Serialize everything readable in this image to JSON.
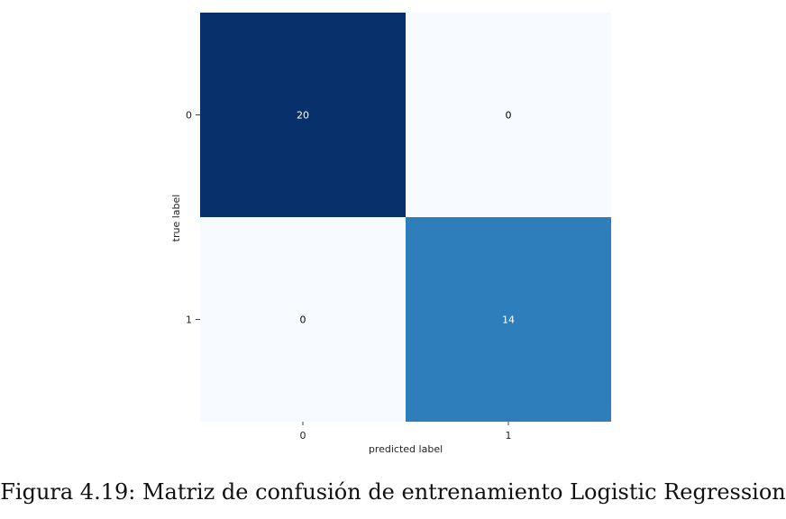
{
  "chart_data": {
    "type": "heatmap",
    "title": "",
    "xlabel": "predicted label",
    "ylabel": "true label",
    "x_categories": [
      "0",
      "1"
    ],
    "y_categories": [
      "0",
      "1"
    ],
    "values": [
      [
        20,
        0
      ],
      [
        0,
        14
      ]
    ],
    "colormap": "Blues",
    "color_range": [
      0,
      20
    ],
    "colorbar": false,
    "grid": false
  },
  "caption": "Figura 4.19: Matriz de confusión de entrenamiento Logistic Regression"
}
